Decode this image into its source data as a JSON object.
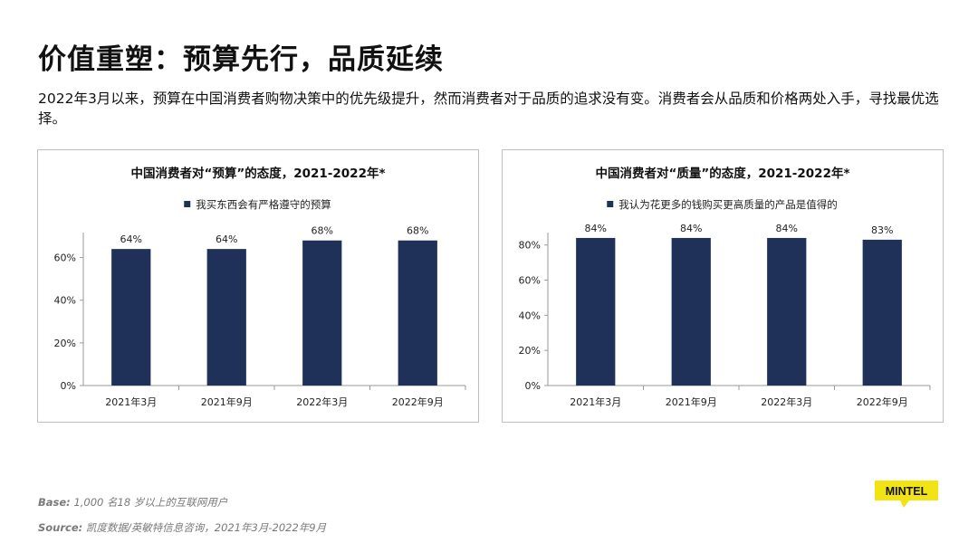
{
  "page": {
    "title": "价值重塑：预算先行，品质延续",
    "subtitle": "2022年3月以来，预算在中国消费者购物决策中的优先级提升，然而消费者对于品质的追求没有变。消费者会从品质和价格两处入手，寻找最优选择。"
  },
  "footer": {
    "base_label": "Base:",
    "base_text": "1,000 名18 岁以上的互联网用户",
    "source_label": "Source:",
    "source_text": "凯度数据/英敏特信息咨询，2021年3月-2022年9月",
    "logo_text": "MINTEL"
  },
  "colors": {
    "bar": "#1f3158",
    "logo_bg": "#f2e314",
    "axis": "#9a9a9a"
  },
  "chart_data": [
    {
      "type": "bar",
      "title": "中国消费者对“预算”的态度，2021-2022年*",
      "categories": [
        "2021年3月",
        "2021年9月",
        "2022年3月",
        "2022年9月"
      ],
      "series": [
        {
          "name": "我买东西会有严格遵守的预算",
          "values": [
            64,
            64,
            68,
            68
          ]
        }
      ],
      "data_labels": [
        "64%",
        "64%",
        "68%",
        "68%"
      ],
      "ylim": [
        0,
        70
      ],
      "yticks": [
        0,
        20,
        40,
        60
      ],
      "ytick_labels": [
        "0%",
        "20%",
        "40%",
        "60%"
      ],
      "legend": "top-center",
      "grid": false
    },
    {
      "type": "bar",
      "title": "中国消费者对“质量”的态度，2021-2022年*",
      "categories": [
        "2021年3月",
        "2021年9月",
        "2022年3月",
        "2022年9月"
      ],
      "series": [
        {
          "name": "我认为花更多的钱购买更高质量的产品是值得的",
          "values": [
            84,
            84,
            84,
            83
          ]
        }
      ],
      "data_labels": [
        "84%",
        "84%",
        "84%",
        "83%"
      ],
      "ylim": [
        0,
        85
      ],
      "yticks": [
        0,
        20,
        40,
        60,
        80
      ],
      "ytick_labels": [
        "0%",
        "20%",
        "40%",
        "60%",
        "80%"
      ],
      "legend": "top-center",
      "grid": false
    }
  ]
}
